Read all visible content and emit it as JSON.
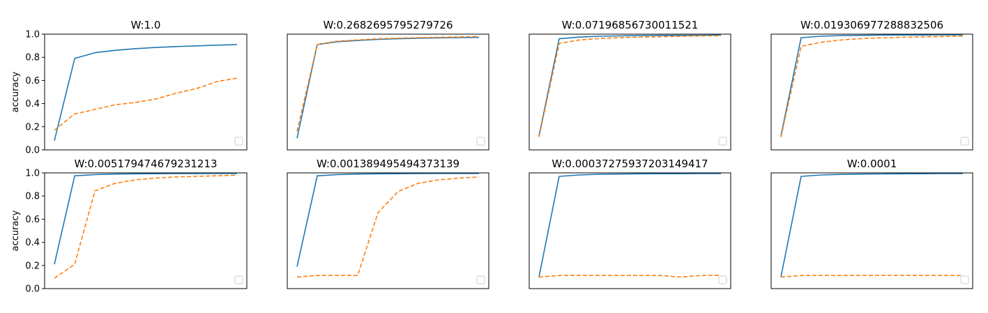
{
  "colors": {
    "series_solid": "#1f77b4",
    "series_dashed": "#ff7f0e",
    "axes": "#000000",
    "background": "#ffffff"
  },
  "chart_data": [
    {
      "type": "line",
      "title": "W:1.0",
      "ylabel": "accuracy",
      "ylim": [
        0,
        1
      ],
      "yticks": [
        "0.0",
        "0.2",
        "0.4",
        "0.6",
        "0.8",
        "1.0"
      ],
      "xticks_visible": false,
      "legend": "lower right (empty)",
      "x": [
        0,
        1,
        2,
        3,
        4,
        5,
        6,
        7,
        8,
        9
      ],
      "series": [
        {
          "style": "solid",
          "values": [
            0.08,
            0.79,
            0.84,
            0.86,
            0.875,
            0.885,
            0.893,
            0.899,
            0.905,
            0.91
          ]
        },
        {
          "style": "dashed",
          "values": [
            0.17,
            0.31,
            0.35,
            0.39,
            0.41,
            0.44,
            0.49,
            0.53,
            0.59,
            0.62
          ]
        }
      ]
    },
    {
      "type": "line",
      "title": "W:0.2682695795279726",
      "ylabel": "",
      "ylim": [
        0,
        1
      ],
      "yticks": [],
      "xticks_visible": false,
      "legend": "lower right (empty)",
      "x": [
        0,
        1,
        2,
        3,
        4,
        5,
        6,
        7,
        8,
        9
      ],
      "series": [
        {
          "style": "solid",
          "values": [
            0.1,
            0.91,
            0.935,
            0.945,
            0.955,
            0.96,
            0.965,
            0.968,
            0.97,
            0.972
          ]
        },
        {
          "style": "dashed",
          "values": [
            0.16,
            0.91,
            0.94,
            0.95,
            0.96,
            0.965,
            0.97,
            0.973,
            0.976,
            0.98
          ]
        }
      ]
    },
    {
      "type": "line",
      "title": "W:0.07196856730011521",
      "ylabel": "",
      "ylim": [
        0,
        1
      ],
      "yticks": [],
      "xticks_visible": false,
      "legend": "lower right (empty)",
      "x": [
        0,
        1,
        2,
        3,
        4,
        5,
        6,
        7,
        8,
        9
      ],
      "series": [
        {
          "style": "solid",
          "values": [
            0.12,
            0.96,
            0.975,
            0.982,
            0.985,
            0.988,
            0.99,
            0.99,
            0.991,
            0.992
          ]
        },
        {
          "style": "dashed",
          "values": [
            0.11,
            0.92,
            0.95,
            0.962,
            0.97,
            0.975,
            0.978,
            0.982,
            0.985,
            0.987
          ]
        }
      ]
    },
    {
      "type": "line",
      "title": "W:0.019306977288832506",
      "ylabel": "",
      "ylim": [
        0,
        1
      ],
      "yticks": [],
      "xticks_visible": false,
      "legend": "lower right (empty)",
      "x": [
        0,
        1,
        2,
        3,
        4,
        5,
        6,
        7,
        8,
        9
      ],
      "series": [
        {
          "style": "solid",
          "values": [
            0.12,
            0.97,
            0.982,
            0.988,
            0.99,
            0.992,
            0.993,
            0.993,
            0.994,
            0.994
          ]
        },
        {
          "style": "dashed",
          "values": [
            0.11,
            0.895,
            0.93,
            0.95,
            0.962,
            0.968,
            0.973,
            0.977,
            0.98,
            0.983
          ]
        }
      ]
    },
    {
      "type": "line",
      "title": "W:0.005179474679231213",
      "ylabel": "accuracy",
      "ylim": [
        0,
        1
      ],
      "yticks": [
        "0.0",
        "0.2",
        "0.4",
        "0.6",
        "0.8",
        "1.0"
      ],
      "xticks_visible": false,
      "legend": "lower right (empty)",
      "x": [
        0,
        1,
        2,
        3,
        4,
        5,
        6,
        7,
        8,
        9
      ],
      "series": [
        {
          "style": "solid",
          "values": [
            0.21,
            0.975,
            0.985,
            0.99,
            0.992,
            0.993,
            0.994,
            0.994,
            0.995,
            0.995
          ]
        },
        {
          "style": "dashed",
          "values": [
            0.09,
            0.21,
            0.845,
            0.91,
            0.94,
            0.955,
            0.965,
            0.97,
            0.975,
            0.98
          ]
        }
      ]
    },
    {
      "type": "line",
      "title": "W:0.001389495494373139",
      "ylabel": "",
      "ylim": [
        0,
        1
      ],
      "yticks": [],
      "xticks_visible": false,
      "legend": "lower right (empty)",
      "x": [
        0,
        1,
        2,
        3,
        4,
        5,
        6,
        7,
        8,
        9
      ],
      "series": [
        {
          "style": "solid",
          "values": [
            0.19,
            0.975,
            0.985,
            0.99,
            0.992,
            0.993,
            0.994,
            0.995,
            0.995,
            0.995
          ]
        },
        {
          "style": "dashed",
          "values": [
            0.1,
            0.113,
            0.113,
            0.113,
            0.655,
            0.84,
            0.91,
            0.94,
            0.955,
            0.965
          ]
        }
      ]
    },
    {
      "type": "line",
      "title": "W:0.00037275937203149417",
      "ylabel": "",
      "ylim": [
        0,
        1
      ],
      "yticks": [],
      "xticks_visible": false,
      "legend": "lower right (empty)",
      "x": [
        0,
        1,
        2,
        3,
        4,
        5,
        6,
        7,
        8,
        9
      ],
      "series": [
        {
          "style": "solid",
          "values": [
            0.1,
            0.97,
            0.982,
            0.988,
            0.99,
            0.992,
            0.993,
            0.993,
            0.994,
            0.994
          ]
        },
        {
          "style": "dashed",
          "values": [
            0.1,
            0.113,
            0.113,
            0.113,
            0.113,
            0.113,
            0.113,
            0.1,
            0.113,
            0.113
          ]
        }
      ]
    },
    {
      "type": "line",
      "title": "W:0.0001",
      "ylabel": "",
      "ylim": [
        0,
        1
      ],
      "yticks": [],
      "xticks_visible": false,
      "legend": "lower right (empty)",
      "x": [
        0,
        1,
        2,
        3,
        4,
        5,
        6,
        7,
        8,
        9
      ],
      "series": [
        {
          "style": "solid",
          "values": [
            0.1,
            0.97,
            0.982,
            0.987,
            0.99,
            0.991,
            0.992,
            0.993,
            0.994,
            0.994
          ]
        },
        {
          "style": "dashed",
          "values": [
            0.1,
            0.113,
            0.113,
            0.113,
            0.113,
            0.113,
            0.113,
            0.113,
            0.113,
            0.113
          ]
        }
      ]
    }
  ]
}
